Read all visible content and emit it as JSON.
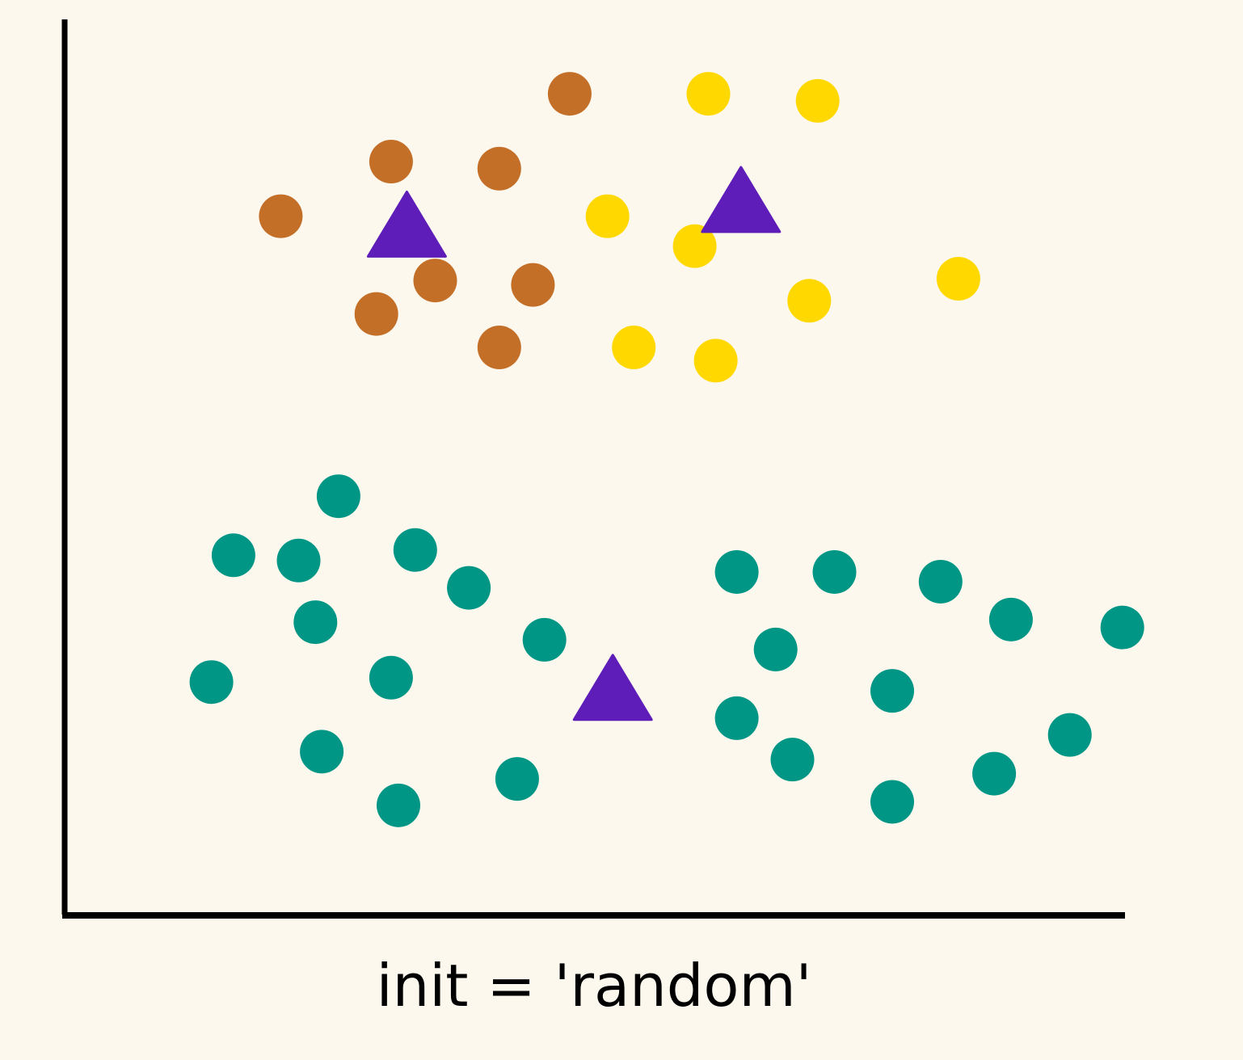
{
  "chart_data": {
    "type": "scatter",
    "title": "",
    "xlabel": "init = 'random'",
    "ylabel": "",
    "xlim": [
      0,
      100
    ],
    "ylim": [
      0,
      100
    ],
    "grid": false,
    "legend": "none",
    "series": [
      {
        "color": "#c46f28",
        "marker": "circle",
        "points": [
          [
            47.3,
            92.1
          ],
          [
            30.3,
            84.4
          ],
          [
            40.6,
            83.6
          ],
          [
            19.8,
            78.2
          ],
          [
            34.5,
            70.9
          ],
          [
            43.8,
            70.4
          ],
          [
            28.9,
            67.1
          ],
          [
            40.6,
            63.3
          ]
        ]
      },
      {
        "color": "#ffd800",
        "marker": "circle",
        "points": [
          [
            60.5,
            92.1
          ],
          [
            70.9,
            91.3
          ],
          [
            50.9,
            78.2
          ],
          [
            59.2,
            74.8
          ],
          [
            84.3,
            71.1
          ],
          [
            70.1,
            68.6
          ],
          [
            53.4,
            63.3
          ],
          [
            61.2,
            61.8
          ]
        ]
      },
      {
        "color": "#009686",
        "marker": "circle",
        "points": [
          [
            25.3,
            46.4
          ],
          [
            15.3,
            39.7
          ],
          [
            21.5,
            39.1
          ],
          [
            32.6,
            40.3
          ],
          [
            37.7,
            36.0
          ],
          [
            23.1,
            32.1
          ],
          [
            44.9,
            30.1
          ],
          [
            13.2,
            25.3
          ],
          [
            30.3,
            25.8
          ],
          [
            23.7,
            17.4
          ],
          [
            31.0,
            11.3
          ],
          [
            42.3,
            14.3
          ],
          [
            63.2,
            37.8
          ],
          [
            72.5,
            37.8
          ],
          [
            82.6,
            36.7
          ],
          [
            89.3,
            32.4
          ],
          [
            99.9,
            31.5
          ],
          [
            66.9,
            29.0
          ],
          [
            78.0,
            24.3
          ],
          [
            63.2,
            21.2
          ],
          [
            68.5,
            16.5
          ],
          [
            78.0,
            11.7
          ],
          [
            87.7,
            14.9
          ],
          [
            94.9,
            19.3
          ]
        ]
      },
      {
        "color": "#5e1cb8",
        "marker": "triangle",
        "role": "centroids",
        "points": [
          [
            31.8,
            77.3
          ],
          [
            63.6,
            80.1
          ],
          [
            51.4,
            24.7
          ]
        ]
      }
    ]
  }
}
